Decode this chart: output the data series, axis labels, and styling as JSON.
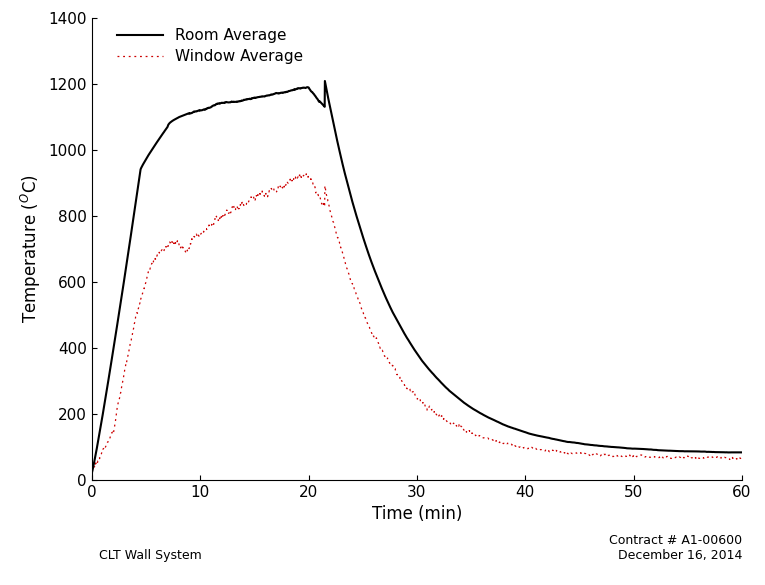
{
  "xlabel": "Time (min)",
  "ylabel": "Temperature ($^{O}$C)",
  "xlim": [
    0,
    60
  ],
  "ylim": [
    0,
    1400
  ],
  "xticks": [
    0,
    10,
    20,
    30,
    40,
    50,
    60
  ],
  "yticks": [
    0,
    200,
    400,
    600,
    800,
    1000,
    1200,
    1400
  ],
  "room_color": "#000000",
  "window_color": "#cc0000",
  "legend_labels": [
    "Room Average",
    "Window Average"
  ],
  "bottom_left_text": "CLT Wall System",
  "bottom_right_text": "Contract # A1-00600\nDecember 16, 2014",
  "room_noise_seed": 7,
  "window_noise_seed": 13
}
